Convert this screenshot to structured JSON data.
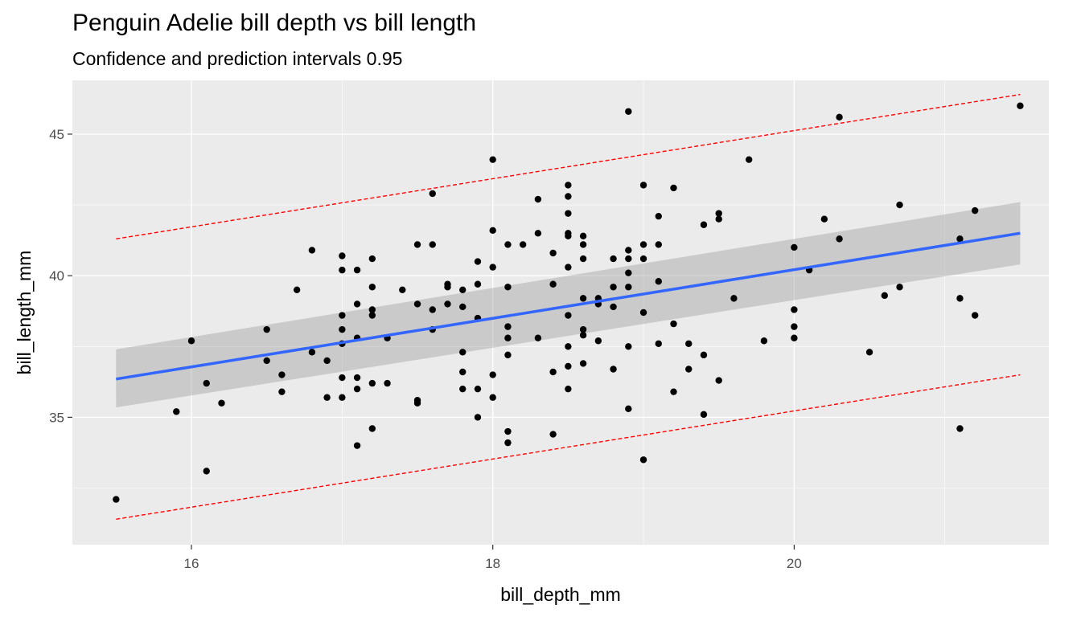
{
  "chart_data": {
    "type": "scatter",
    "title": "Penguin Adelie bill depth vs bill length",
    "subtitle": "Confidence and prediction intervals 0.95",
    "xlabel": "bill_depth_mm",
    "ylabel": "bill_length_mm",
    "xlim": [
      15.21,
      21.69
    ],
    "ylim": [
      30.5,
      46.9
    ],
    "x_ticks": [
      16,
      18,
      20
    ],
    "x_minor_ticks": [
      17,
      19,
      21
    ],
    "y_ticks": [
      35,
      40,
      45
    ],
    "y_minor_ticks": [
      32.5,
      37.5,
      42.5
    ],
    "x_tick_labels": [
      "16",
      "18",
      "20"
    ],
    "y_tick_labels": [
      "35",
      "40",
      "45"
    ],
    "grid": true,
    "legend": "none",
    "points": [
      [
        15.5,
        32.1
      ],
      [
        15.9,
        35.2
      ],
      [
        16.0,
        37.7
      ],
      [
        16.1,
        36.2
      ],
      [
        16.1,
        33.1
      ],
      [
        16.2,
        35.5
      ],
      [
        16.5,
        38.1
      ],
      [
        16.5,
        37.0
      ],
      [
        16.6,
        36.5
      ],
      [
        16.6,
        35.9
      ],
      [
        16.7,
        39.5
      ],
      [
        16.8,
        40.9
      ],
      [
        16.8,
        37.3
      ],
      [
        16.9,
        37.0
      ],
      [
        16.9,
        35.7
      ],
      [
        17.0,
        40.7
      ],
      [
        17.0,
        40.2
      ],
      [
        17.0,
        38.6
      ],
      [
        17.0,
        38.1
      ],
      [
        17.0,
        37.6
      ],
      [
        17.0,
        36.4
      ],
      [
        17.0,
        35.7
      ],
      [
        17.1,
        40.2
      ],
      [
        17.1,
        39.0
      ],
      [
        17.1,
        37.8
      ],
      [
        17.1,
        36.4
      ],
      [
        17.1,
        36.0
      ],
      [
        17.1,
        34.0
      ],
      [
        17.2,
        40.6
      ],
      [
        17.2,
        39.6
      ],
      [
        17.2,
        38.8
      ],
      [
        17.2,
        38.6
      ],
      [
        17.2,
        36.2
      ],
      [
        17.2,
        34.6
      ],
      [
        17.3,
        37.8
      ],
      [
        17.3,
        36.2
      ],
      [
        17.4,
        39.5
      ],
      [
        17.5,
        41.1
      ],
      [
        17.5,
        39.0
      ],
      [
        17.5,
        35.6
      ],
      [
        17.5,
        35.5
      ],
      [
        17.6,
        42.9
      ],
      [
        17.6,
        41.1
      ],
      [
        17.6,
        38.8
      ],
      [
        17.6,
        38.1
      ],
      [
        17.7,
        39.7
      ],
      [
        17.7,
        39.6
      ],
      [
        17.7,
        39.0
      ],
      [
        17.8,
        39.5
      ],
      [
        17.8,
        38.9
      ],
      [
        17.8,
        37.3
      ],
      [
        17.8,
        36.6
      ],
      [
        17.8,
        36.0
      ],
      [
        17.9,
        40.5
      ],
      [
        17.9,
        39.7
      ],
      [
        17.9,
        38.5
      ],
      [
        17.9,
        36.0
      ],
      [
        17.9,
        35.0
      ],
      [
        18.0,
        44.1
      ],
      [
        18.0,
        41.6
      ],
      [
        18.0,
        40.3
      ],
      [
        18.0,
        36.5
      ],
      [
        18.0,
        35.7
      ],
      [
        18.1,
        41.1
      ],
      [
        18.1,
        39.6
      ],
      [
        18.1,
        38.2
      ],
      [
        18.1,
        37.8
      ],
      [
        18.1,
        37.2
      ],
      [
        18.1,
        34.5
      ],
      [
        18.1,
        34.1
      ],
      [
        18.2,
        41.1
      ],
      [
        18.3,
        42.7
      ],
      [
        18.3,
        41.5
      ],
      [
        18.3,
        37.8
      ],
      [
        18.4,
        40.8
      ],
      [
        18.4,
        39.7
      ],
      [
        18.4,
        36.6
      ],
      [
        18.4,
        34.4
      ],
      [
        18.5,
        43.2
      ],
      [
        18.5,
        42.8
      ],
      [
        18.5,
        42.2
      ],
      [
        18.5,
        41.5
      ],
      [
        18.5,
        41.4
      ],
      [
        18.5,
        40.3
      ],
      [
        18.5,
        38.6
      ],
      [
        18.5,
        37.5
      ],
      [
        18.5,
        36.8
      ],
      [
        18.5,
        36.0
      ],
      [
        18.6,
        41.4
      ],
      [
        18.6,
        41.1
      ],
      [
        18.6,
        40.6
      ],
      [
        18.6,
        39.2
      ],
      [
        18.6,
        38.1
      ],
      [
        18.6,
        37.9
      ],
      [
        18.6,
        36.9
      ],
      [
        18.7,
        39.2
      ],
      [
        18.7,
        39.0
      ],
      [
        18.7,
        37.7
      ],
      [
        18.8,
        40.6
      ],
      [
        18.8,
        39.6
      ],
      [
        18.8,
        38.9
      ],
      [
        18.8,
        36.7
      ],
      [
        18.9,
        45.8
      ],
      [
        18.9,
        40.9
      ],
      [
        18.9,
        40.6
      ],
      [
        18.9,
        40.1
      ],
      [
        18.9,
        39.6
      ],
      [
        18.9,
        37.5
      ],
      [
        18.9,
        35.3
      ],
      [
        19.0,
        43.2
      ],
      [
        19.0,
        41.1
      ],
      [
        19.0,
        40.6
      ],
      [
        19.0,
        38.7
      ],
      [
        19.0,
        33.5
      ],
      [
        19.1,
        42.1
      ],
      [
        19.1,
        41.1
      ],
      [
        19.1,
        39.8
      ],
      [
        19.1,
        37.6
      ],
      [
        19.2,
        43.1
      ],
      [
        19.2,
        38.3
      ],
      [
        19.2,
        35.9
      ],
      [
        19.3,
        37.6
      ],
      [
        19.3,
        36.7
      ],
      [
        19.4,
        41.8
      ],
      [
        19.4,
        37.2
      ],
      [
        19.4,
        35.1
      ],
      [
        19.5,
        42.2
      ],
      [
        19.5,
        42.0
      ],
      [
        19.5,
        36.3
      ],
      [
        19.6,
        39.2
      ],
      [
        19.7,
        44.1
      ],
      [
        19.8,
        37.7
      ],
      [
        20.0,
        41.0
      ],
      [
        20.0,
        38.8
      ],
      [
        20.0,
        38.2
      ],
      [
        20.0,
        37.8
      ],
      [
        20.1,
        40.2
      ],
      [
        20.2,
        42.0
      ],
      [
        20.3,
        45.6
      ],
      [
        20.3,
        41.3
      ],
      [
        20.5,
        37.3
      ],
      [
        20.6,
        39.3
      ],
      [
        20.7,
        42.5
      ],
      [
        20.7,
        39.6
      ],
      [
        21.1,
        41.3
      ],
      [
        21.1,
        39.2
      ],
      [
        21.1,
        34.6
      ],
      [
        21.2,
        42.3
      ],
      [
        21.2,
        38.6
      ],
      [
        21.5,
        46.0
      ]
    ],
    "fit": {
      "name": "regression line",
      "color": "#3366ff",
      "x": [
        15.5,
        21.5
      ],
      "y": [
        36.35,
        41.5
      ],
      "ci_lower": [
        35.35,
        40.4
      ],
      "ci_upper": [
        37.4,
        42.6
      ],
      "ci_color": "#999999"
    },
    "prediction_interval": {
      "color": "#ff0000",
      "style": "dashed",
      "x": [
        15.5,
        21.5
      ],
      "lower": [
        31.4,
        36.5
      ],
      "upper": [
        41.3,
        46.4
      ]
    },
    "colors": {
      "panel": "#ebebeb",
      "grid": "#ffffff",
      "points": "#000000"
    }
  }
}
